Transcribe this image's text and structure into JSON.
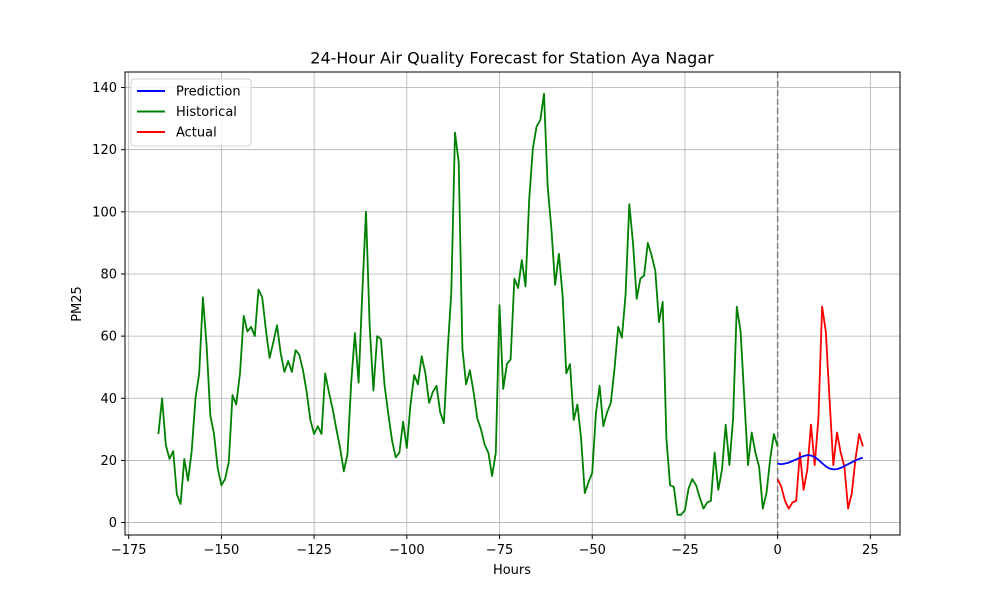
{
  "chart_data": {
    "type": "line",
    "title": "24-Hour Air Quality Forecast for Station Aya Nagar",
    "xlabel": "Hours",
    "ylabel": "PM25",
    "xlim": [
      -176,
      33
    ],
    "ylim": [
      -4,
      145
    ],
    "xticks": [
      -175,
      -150,
      -125,
      -100,
      -75,
      -50,
      -25,
      0,
      25
    ],
    "yticks": [
      0,
      20,
      40,
      60,
      80,
      100,
      120,
      140
    ],
    "grid": true,
    "legend": "top-left",
    "vline": {
      "x": 0,
      "style": "dashed",
      "color": "#808080"
    },
    "series": [
      {
        "name": "Prediction",
        "color": "#0000ff",
        "x": [
          0,
          1,
          2,
          3,
          4,
          5,
          6,
          7,
          8,
          9,
          10,
          11,
          12,
          13,
          14,
          15,
          16,
          17,
          18,
          19,
          20,
          21,
          22,
          23
        ],
        "y": [
          19,
          18.8,
          19,
          19.3,
          19.8,
          20.3,
          20.9,
          21.4,
          21.7,
          21.6,
          21.1,
          20.2,
          19.1,
          18.1,
          17.4,
          17.1,
          17.2,
          17.6,
          18.2,
          18.8,
          19.4,
          20,
          20.5,
          20.9
        ]
      },
      {
        "name": "Historical",
        "color": "#008000",
        "x": [
          -167,
          -166,
          -165,
          -164,
          -163,
          -162,
          -161,
          -160,
          -159,
          -158,
          -157,
          -156,
          -155,
          -154,
          -153,
          -152,
          -151,
          -150,
          -149,
          -148,
          -147,
          -146,
          -145,
          -144,
          -143,
          -142,
          -141,
          -140,
          -139,
          -138,
          -137,
          -136,
          -135,
          -134,
          -133,
          -132,
          -131,
          -130,
          -129,
          -128,
          -127,
          -126,
          -125,
          -124,
          -123,
          -122,
          -121,
          -120,
          -119,
          -118,
          -117,
          -116,
          -115,
          -114,
          -113,
          -112,
          -111,
          -110,
          -109,
          -108,
          -107,
          -106,
          -105,
          -104,
          -103,
          -102,
          -101,
          -100,
          -99,
          -98,
          -97,
          -96,
          -95,
          -94,
          -93,
          -92,
          -91,
          -90,
          -89,
          -88,
          -87,
          -86,
          -85,
          -84,
          -83,
          -82,
          -81,
          -80,
          -79,
          -78,
          -77,
          -76,
          -75,
          -74,
          -73,
          -72,
          -71,
          -70,
          -69,
          -68,
          -67,
          -66,
          -65,
          -64,
          -63,
          -62,
          -61,
          -60,
          -59,
          -58,
          -57,
          -56,
          -55,
          -54,
          -53,
          -52,
          -51,
          -50,
          -49,
          -48,
          -47,
          -46,
          -45,
          -44,
          -43,
          -42,
          -41,
          -40,
          -39,
          -38,
          -37,
          -36,
          -35,
          -34,
          -33,
          -32,
          -31,
          -30,
          -29,
          -28,
          -27,
          -26,
          -25,
          -24,
          -23,
          -22,
          -21,
          -20,
          -19,
          -18,
          -17,
          -16,
          -15,
          -14,
          -13,
          -12,
          -11,
          -10,
          -9,
          -8,
          -7,
          -6,
          -5,
          -4,
          -3,
          -2,
          -1,
          0
        ],
        "y": [
          28.5,
          40,
          25,
          20.5,
          23,
          9,
          6,
          20.5,
          13.5,
          23,
          40,
          48,
          72.5,
          57,
          34.5,
          28.5,
          17.5,
          12,
          14,
          19.5,
          41,
          38,
          48,
          66.5,
          61.5,
          63,
          60,
          75,
          72.5,
          62,
          53,
          58,
          63.5,
          54.5,
          48.5,
          52,
          48.5,
          55.5,
          54,
          49,
          42,
          33,
          28.5,
          31,
          28.5,
          48,
          42,
          36.5,
          30,
          24,
          16.5,
          22,
          45,
          61,
          45,
          74,
          100,
          63,
          42.5,
          60,
          59,
          44,
          35,
          26.5,
          21,
          22.5,
          32.5,
          24,
          38,
          47.5,
          44.5,
          53.5,
          48,
          38.5,
          42,
          44,
          35.5,
          32,
          55,
          74,
          125.5,
          116,
          56,
          44.5,
          49,
          42,
          33.5,
          30,
          25,
          22.5,
          15,
          22.5,
          70,
          43,
          51,
          52.5,
          78.5,
          75.5,
          84.5,
          76,
          104,
          120.5,
          127.5,
          129.5,
          138,
          108,
          94.5,
          76.5,
          86.5,
          73,
          48,
          51,
          33,
          38,
          27,
          9.5,
          13,
          16,
          35,
          44,
          31,
          35.5,
          38.5,
          49.5,
          63,
          59.5,
          73.5,
          102.5,
          90,
          72,
          78.5,
          79.5,
          90,
          86,
          81,
          64.5,
          71,
          27,
          12,
          11.5,
          2.5,
          2.5,
          4,
          11,
          14,
          12,
          8,
          4.5,
          6.5,
          7,
          22.5,
          10.5,
          17,
          31.5,
          18.5,
          33.5,
          69.5,
          61.5,
          40,
          18.5,
          29,
          22.5,
          18,
          4.5,
          9.5,
          20.5,
          28.5,
          24.5
        ]
      },
      {
        "name": "Actual",
        "color": "#ff0000",
        "x": [
          0,
          1,
          2,
          3,
          4,
          5,
          6,
          7,
          8,
          9,
          10,
          11,
          12,
          13,
          14,
          15,
          16,
          17,
          18,
          19,
          20,
          21,
          22,
          23
        ],
        "y": [
          14,
          11.5,
          7,
          4.5,
          6.5,
          7,
          22.5,
          10.5,
          17,
          31.5,
          18.5,
          33.5,
          69.5,
          61.5,
          40,
          18.5,
          29,
          22.5,
          18,
          4.5,
          9.5,
          20.5,
          28.5,
          24.5
        ]
      }
    ]
  }
}
